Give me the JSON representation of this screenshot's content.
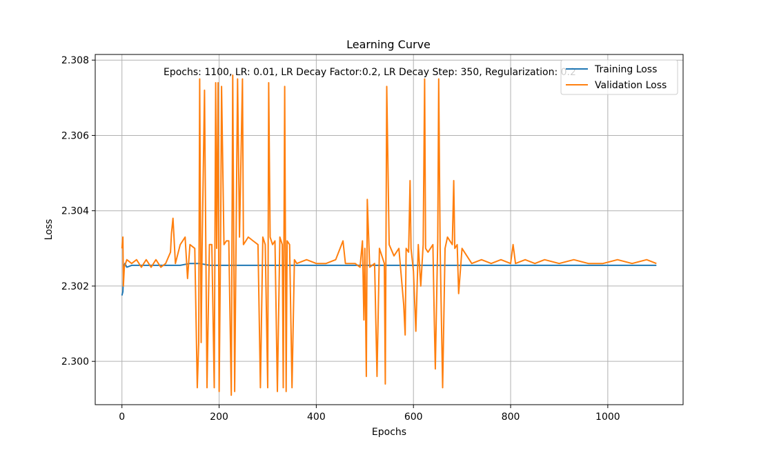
{
  "chart_data": {
    "type": "line",
    "title": "Learning Curve",
    "xlabel": "Epochs",
    "ylabel": "Loss",
    "annotation": "Epochs: 1100, LR: 0.01, LR Decay Factor:0.2, LR Decay Step: 350, Regularization: 0.2",
    "xlim": [
      -55,
      1155
    ],
    "ylim": [
      2.29885,
      2.30815
    ],
    "xticks": [
      0,
      200,
      400,
      600,
      800,
      1000
    ],
    "yticks": [
      2.3,
      2.302,
      2.304,
      2.306,
      2.308
    ],
    "xtick_labels": [
      "0",
      "200",
      "400",
      "600",
      "800",
      "1000"
    ],
    "ytick_labels": [
      "2.300",
      "2.302",
      "2.304",
      "2.306",
      "2.308"
    ],
    "grid": true,
    "legend_position": "upper-right",
    "series": [
      {
        "name": "Training Loss",
        "color": "#1f77b4",
        "x": [
          0,
          2,
          4,
          6,
          10,
          20,
          40,
          60,
          80,
          100,
          120,
          140,
          160,
          180,
          200,
          220,
          240,
          260,
          280,
          300,
          320,
          340,
          360,
          380,
          400,
          450,
          500,
          550,
          600,
          650,
          700,
          750,
          800,
          850,
          900,
          950,
          1000,
          1050,
          1100
        ],
        "y": [
          2.30175,
          2.30185,
          2.3025,
          2.3026,
          2.3025,
          2.30255,
          2.30255,
          2.30255,
          2.30255,
          2.30255,
          2.30255,
          2.3026,
          2.3026,
          2.30255,
          2.30255,
          2.30255,
          2.30255,
          2.30255,
          2.30255,
          2.30255,
          2.30255,
          2.30255,
          2.30255,
          2.30255,
          2.30255,
          2.30255,
          2.30255,
          2.30255,
          2.30255,
          2.30255,
          2.30255,
          2.30255,
          2.30255,
          2.30255,
          2.30255,
          2.30255,
          2.30255,
          2.30255,
          2.30255
        ]
      },
      {
        "name": "Validation Loss",
        "color": "#ff7f0e",
        "x": [
          0,
          2,
          3,
          5,
          10,
          20,
          30,
          40,
          50,
          60,
          70,
          80,
          90,
          100,
          102,
          105,
          110,
          120,
          130,
          135,
          140,
          150,
          155,
          158,
          160,
          163,
          165,
          170,
          175,
          180,
          185,
          190,
          193,
          195,
          198,
          200,
          203,
          205,
          210,
          215,
          220,
          225,
          228,
          232,
          238,
          242,
          248,
          250,
          255,
          260,
          270,
          280,
          285,
          290,
          295,
          300,
          302,
          305,
          310,
          315,
          320,
          325,
          330,
          332,
          335,
          338,
          340,
          345,
          350,
          355,
          360,
          380,
          400,
          420,
          440,
          455,
          460,
          480,
          490,
          495,
          498,
          500,
          503,
          505,
          510,
          520,
          525,
          530,
          540,
          542,
          545,
          550,
          560,
          570,
          580,
          583,
          585,
          590,
          593,
          595,
          600,
          605,
          610,
          615,
          620,
          623,
          625,
          630,
          640,
          643,
          645,
          650,
          652,
          655,
          660,
          665,
          670,
          680,
          683,
          685,
          690,
          693,
          700,
          720,
          740,
          760,
          780,
          800,
          805,
          810,
          830,
          850,
          870,
          900,
          930,
          960,
          990,
          1020,
          1050,
          1080,
          1100
        ],
        "y": [
          2.303,
          2.3033,
          2.302,
          2.3025,
          2.3027,
          2.3026,
          2.3027,
          2.3025,
          2.3027,
          2.3025,
          2.3027,
          2.3025,
          2.3026,
          2.3029,
          2.3034,
          2.3038,
          2.3026,
          2.3031,
          2.3033,
          2.3022,
          2.3031,
          2.303,
          2.2993,
          2.3005,
          2.3075,
          2.3005,
          2.303,
          2.3072,
          2.2993,
          2.3031,
          2.3031,
          2.2993,
          2.3074,
          2.303,
          2.3074,
          2.2992,
          2.3032,
          2.3073,
          2.3031,
          2.3032,
          2.3032,
          2.2991,
          2.3076,
          2.2992,
          2.3075,
          2.3033,
          2.3075,
          2.3031,
          2.3032,
          2.3033,
          2.3032,
          2.3031,
          2.2993,
          2.3033,
          2.3031,
          2.2993,
          2.3074,
          2.3033,
          2.3031,
          2.3032,
          2.2992,
          2.3033,
          2.3031,
          2.2993,
          2.3073,
          2.2992,
          2.3032,
          2.3031,
          2.2993,
          2.3027,
          2.3026,
          2.3027,
          2.3026,
          2.3026,
          2.3027,
          2.3032,
          2.3026,
          2.3026,
          2.3025,
          2.3032,
          2.3011,
          2.303,
          2.2996,
          2.3043,
          2.3025,
          2.3026,
          2.2996,
          2.303,
          2.3026,
          2.2994,
          2.3073,
          2.3031,
          2.3028,
          2.303,
          2.3015,
          2.3007,
          2.303,
          2.3029,
          2.3048,
          2.303,
          2.3024,
          2.3008,
          2.3031,
          2.302,
          2.3031,
          2.3075,
          2.303,
          2.3029,
          2.3031,
          2.301,
          2.2998,
          2.3032,
          2.3075,
          2.303,
          2.2993,
          2.303,
          2.3033,
          2.3031,
          2.3048,
          2.303,
          2.3031,
          2.3018,
          2.303,
          2.3026,
          2.3027,
          2.3026,
          2.3027,
          2.3026,
          2.3031,
          2.3026,
          2.3027,
          2.3026,
          2.3027,
          2.3026,
          2.3027,
          2.3026,
          2.3026,
          2.3027,
          2.3026,
          2.3027,
          2.3026
        ]
      }
    ]
  }
}
